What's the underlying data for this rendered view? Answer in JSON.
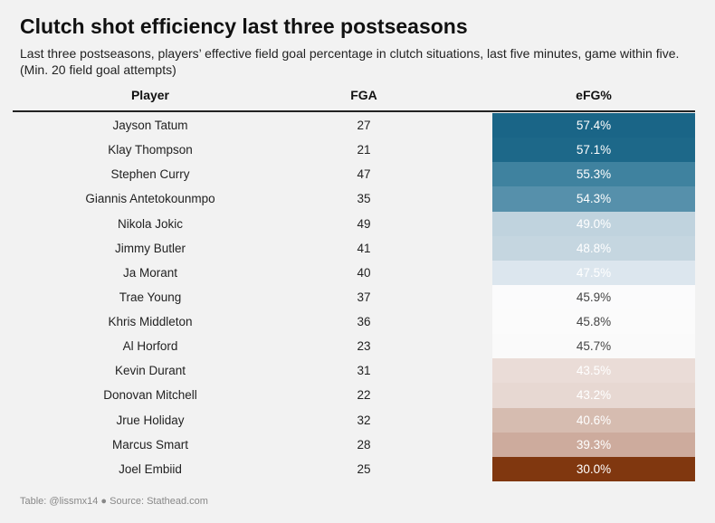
{
  "title": "Clutch shot efficiency last three postseasons",
  "subtitle": "Last three postseasons, players’ effective field goal percentage in clutch situations, last five minutes, game within five. (Min. 20 field goal attempts)",
  "footer": "Table: @lissmx14 ● Source: Stathead.com",
  "chart_data": {
    "type": "table",
    "columns": [
      "Player",
      "FGA",
      "eFG%"
    ],
    "rows": [
      {
        "player": "Jayson Tatum",
        "fga": "27",
        "efg": "57.4%",
        "efg_value": 57.4,
        "color": "#1a6587",
        "text_color": "#ffffff"
      },
      {
        "player": "Klay Thompson",
        "fga": "21",
        "efg": "57.1%",
        "efg_value": 57.1,
        "color": "#1d6889",
        "text_color": "#ffffff"
      },
      {
        "player": "Stephen Curry",
        "fga": "47",
        "efg": "55.3%",
        "efg_value": 55.3,
        "color": "#3f829f",
        "text_color": "#ffffff"
      },
      {
        "player": "Giannis Antetokounmpo",
        "fga": "35",
        "efg": "54.3%",
        "efg_value": 54.3,
        "color": "#5690ab",
        "text_color": "#ffffff"
      },
      {
        "player": "Nikola Jokic",
        "fga": "49",
        "efg": "49.0%",
        "efg_value": 49.0,
        "color": "#c0d3de",
        "text_color": "#ffffff"
      },
      {
        "player": "Jimmy Butler",
        "fga": "41",
        "efg": "48.8%",
        "efg_value": 48.8,
        "color": "#c5d6e0",
        "text_color": "#ffffff"
      },
      {
        "player": "Ja Morant",
        "fga": "40",
        "efg": "47.5%",
        "efg_value": 47.5,
        "color": "#dce6ee",
        "text_color": "#ffffff"
      },
      {
        "player": "Trae Young",
        "fga": "37",
        "efg": "45.9%",
        "efg_value": 45.9,
        "color": "#fbfbfc",
        "text_color": "#444444"
      },
      {
        "player": "Khris Middleton",
        "fga": "36",
        "efg": "45.8%",
        "efg_value": 45.8,
        "color": "#fbfbfb",
        "text_color": "#444444"
      },
      {
        "player": "Al Horford",
        "fga": "23",
        "efg": "45.7%",
        "efg_value": 45.7,
        "color": "#fafafa",
        "text_color": "#444444"
      },
      {
        "player": "Kevin Durant",
        "fga": "31",
        "efg": "43.5%",
        "efg_value": 43.5,
        "color": "#eadcd7",
        "text_color": "#ffffff"
      },
      {
        "player": "Donovan Mitchell",
        "fga": "22",
        "efg": "43.2%",
        "efg_value": 43.2,
        "color": "#e7d8d2",
        "text_color": "#ffffff"
      },
      {
        "player": "Jrue Holiday",
        "fga": "32",
        "efg": "40.6%",
        "efg_value": 40.6,
        "color": "#d6bcb0",
        "text_color": "#ffffff"
      },
      {
        "player": "Marcus Smart",
        "fga": "28",
        "efg": "39.3%",
        "efg_value": 39.3,
        "color": "#cdab9d",
        "text_color": "#ffffff"
      },
      {
        "player": "Joel Embiid",
        "fga": "25",
        "efg": "30.0%",
        "efg_value": 30.0,
        "color": "#80370f",
        "text_color": "#ffffff"
      }
    ]
  }
}
